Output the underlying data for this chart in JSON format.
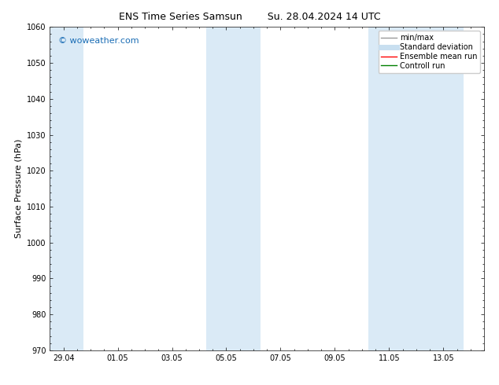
{
  "title_left": "ENS Time Series Samsun",
  "title_right": "Su. 28.04.2024 14 UTC",
  "ylabel": "Surface Pressure (hPa)",
  "ylim": [
    970,
    1060
  ],
  "yticks": [
    970,
    980,
    990,
    1000,
    1010,
    1020,
    1030,
    1040,
    1050,
    1060
  ],
  "xtick_labels": [
    "29.04",
    "01.05",
    "03.05",
    "05.05",
    "07.05",
    "09.05",
    "11.05",
    "13.05"
  ],
  "xtick_positions": [
    0,
    2,
    4,
    6,
    8,
    10,
    12,
    14
  ],
  "xlim": [
    -0.5,
    15.5
  ],
  "shaded_regions": [
    {
      "x_start": -0.5,
      "x_end": 0.75
    },
    {
      "x_start": 5.25,
      "x_end": 7.25
    },
    {
      "x_start": 11.25,
      "x_end": 14.75
    }
  ],
  "shade_color": "#daeaf6",
  "background_color": "#ffffff",
  "watermark_text": "© woweather.com",
  "watermark_color": "#1a6db5",
  "legend_items": [
    {
      "label": "min/max",
      "color": "#999999",
      "lw": 1.0
    },
    {
      "label": "Standard deviation",
      "color": "#c8dff0",
      "lw": 5
    },
    {
      "label": "Ensemble mean run",
      "color": "#ff0000",
      "lw": 1.0
    },
    {
      "label": "Controll run",
      "color": "#008000",
      "lw": 1.0
    }
  ],
  "title_fontsize": 9,
  "tick_fontsize": 7,
  "ylabel_fontsize": 8,
  "watermark_fontsize": 8,
  "legend_fontsize": 7
}
